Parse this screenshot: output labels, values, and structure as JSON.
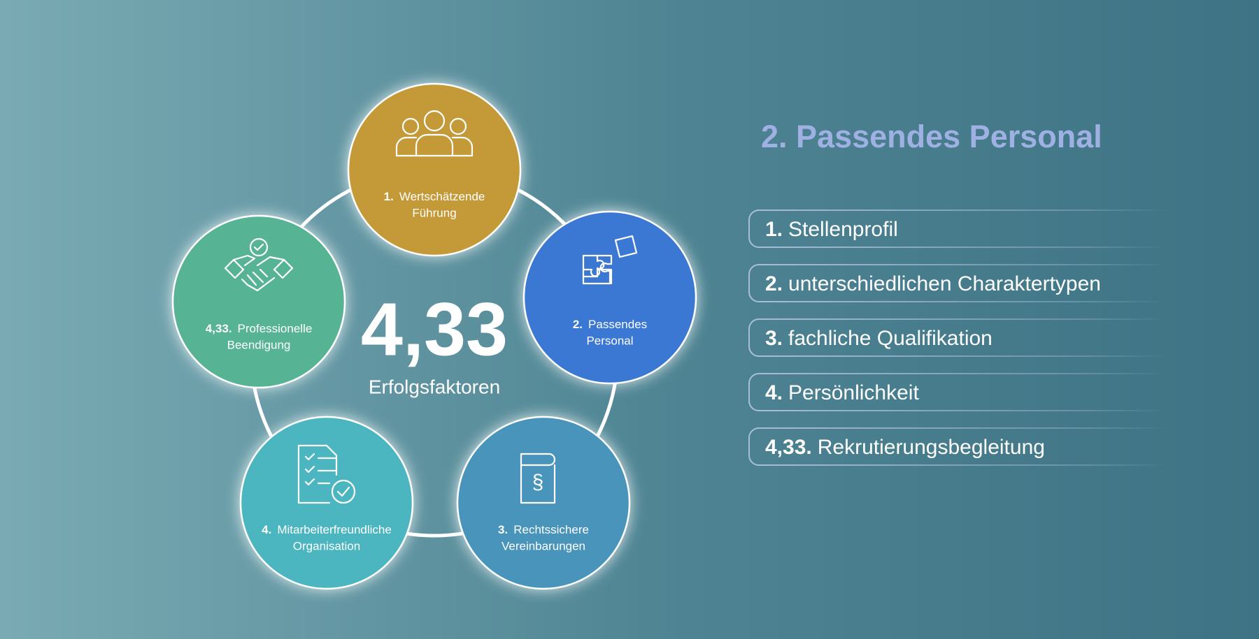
{
  "center": {
    "value": "4,33",
    "label": "Erfolgsfaktoren"
  },
  "nodes": [
    {
      "number": "1.",
      "label_lines": [
        "Wertschätzende",
        "Führung"
      ]
    },
    {
      "number": "2.",
      "label_lines": [
        "Passendes",
        "Personal"
      ]
    },
    {
      "number": "3.",
      "label_lines": [
        "Rechtssichere",
        "Vereinbarungen"
      ]
    },
    {
      "number": "4.",
      "label_lines": [
        "Mitarbeiterfreundliche",
        "Organisation"
      ]
    },
    {
      "number": "4,33.",
      "label_lines": [
        "Professionelle",
        "Beendigung"
      ]
    }
  ],
  "detail": {
    "title": "2. Passendes Personal",
    "items": [
      {
        "number": "1.",
        "text": "Stellenprofil"
      },
      {
        "number": "2.",
        "text": "unterschiedlichen Charaktertypen"
      },
      {
        "number": "3.",
        "text": "fachliche Qualifikation"
      },
      {
        "number": "4.",
        "text": "Persönlichkeit"
      },
      {
        "number": "4,33.",
        "text": "Rekrutierungsbegleitung"
      }
    ]
  }
}
